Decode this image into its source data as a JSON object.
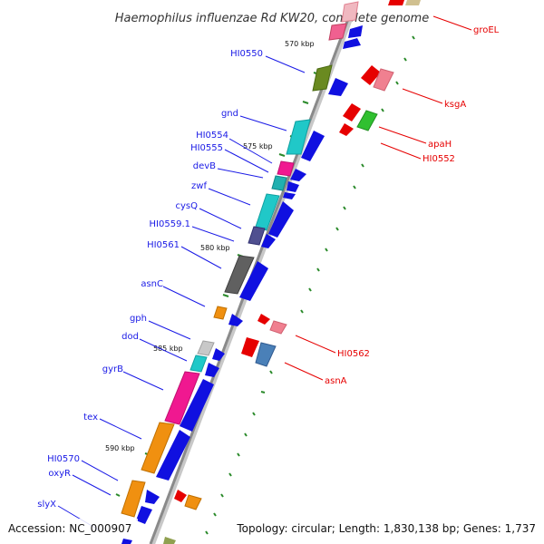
{
  "title": "Haemophilus influenzae Rd KW20, complete genome",
  "footer": {
    "accession": "Accession: NC_000907",
    "topology": "Topology: circular; Length: 1,830,138 bp; Genes: 1,737"
  },
  "scale_labels": [
    "570 kbp",
    "575 kbp",
    "580 kbp",
    "585 kbp",
    "590 kbp"
  ],
  "genes_left": [
    {
      "label": "HI0550",
      "color": "#1a1ae6"
    },
    {
      "label": "gnd",
      "color": "#1a1ae6"
    },
    {
      "label": "HI0554",
      "color": "#1a1ae6"
    },
    {
      "label": "HI0555",
      "color": "#1a1ae6"
    },
    {
      "label": "devB",
      "color": "#1a1ae6"
    },
    {
      "label": "zwf",
      "color": "#1a1ae6"
    },
    {
      "label": "cysQ",
      "color": "#1a1ae6"
    },
    {
      "label": "HI0559.1",
      "color": "#1a1ae6"
    },
    {
      "label": "HI0561",
      "color": "#1a1ae6"
    },
    {
      "label": "asnC",
      "color": "#1a1ae6"
    },
    {
      "label": "gph",
      "color": "#1a1ae6"
    },
    {
      "label": "dod",
      "color": "#1a1ae6"
    },
    {
      "label": "gyrB",
      "color": "#1a1ae6"
    },
    {
      "label": "tex",
      "color": "#1a1ae6"
    },
    {
      "label": "HI0570",
      "color": "#1a1ae6"
    },
    {
      "label": "oxyR",
      "color": "#1a1ae6"
    },
    {
      "label": "slyX",
      "color": "#1a1ae6"
    }
  ],
  "genes_right": [
    {
      "label": "groEL",
      "color": "#e60000"
    },
    {
      "label": "ksgA",
      "color": "#e60000"
    },
    {
      "label": "apaH",
      "color": "#e60000"
    },
    {
      "label": "HI0552",
      "color": "#e60000"
    },
    {
      "label": "HI0562",
      "color": "#e60000"
    },
    {
      "label": "asnA",
      "color": "#e60000"
    }
  ]
}
